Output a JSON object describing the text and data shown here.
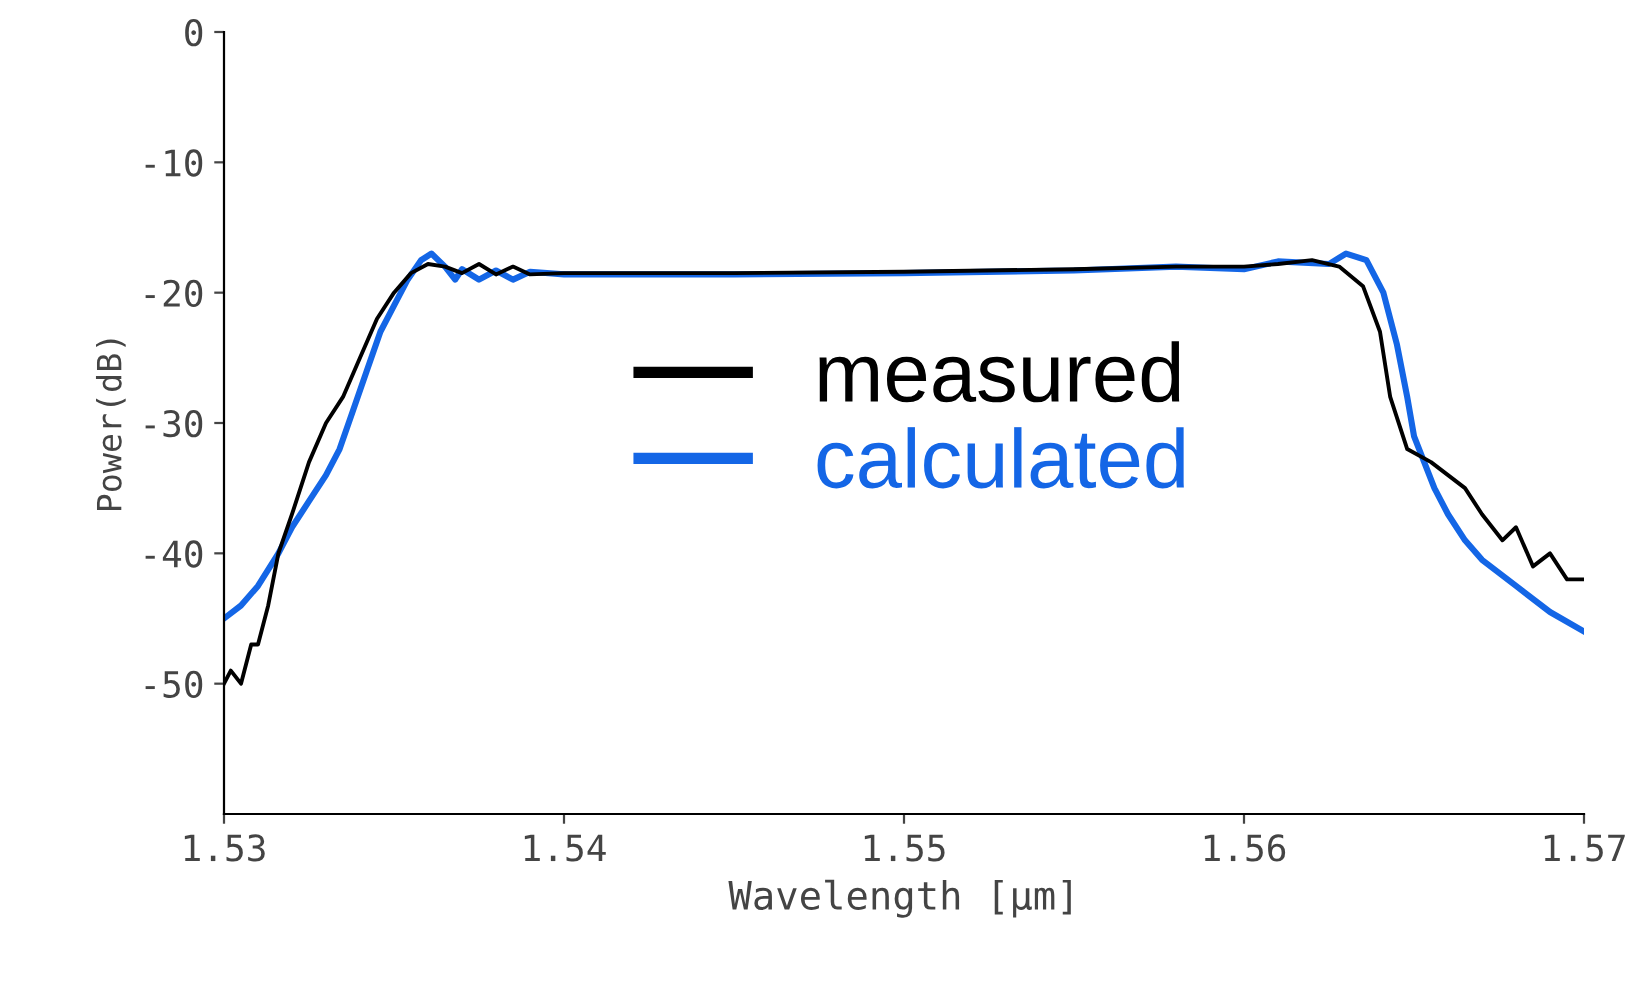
{
  "chart_data": {
    "type": "line",
    "xlabel": "Wavelength [μm]",
    "ylabel": "Power(dB)",
    "xlim": [
      1.53,
      1.57
    ],
    "xticks": [
      1.53,
      1.54,
      1.55,
      1.56,
      1.57
    ],
    "ylim": [
      -60,
      0
    ],
    "yticks": [
      0,
      -10,
      -20,
      -30,
      -40,
      -50
    ],
    "grid": false,
    "legend": "center left",
    "line_style": "solid",
    "marker": "none",
    "series": [
      {
        "name": "measured",
        "color": "#000000",
        "x": [
          1.53,
          1.5302,
          1.5305,
          1.5308,
          1.531,
          1.5313,
          1.5316,
          1.532,
          1.5325,
          1.533,
          1.5335,
          1.534,
          1.5345,
          1.535,
          1.5355,
          1.536,
          1.5365,
          1.537,
          1.5375,
          1.538,
          1.5385,
          1.539,
          1.54,
          1.545,
          1.55,
          1.555,
          1.558,
          1.56,
          1.561,
          1.562,
          1.5628,
          1.5635,
          1.564,
          1.5643,
          1.5648,
          1.5655,
          1.566,
          1.5665,
          1.567,
          1.5676,
          1.568,
          1.5685,
          1.569,
          1.5695,
          1.57
        ],
        "values": [
          -50,
          -49,
          -50,
          -47,
          -47,
          -44,
          -40,
          -37,
          -33,
          -30,
          -28,
          -25,
          -22,
          -20,
          -18.5,
          -17.8,
          -18,
          -18.5,
          -17.8,
          -18.6,
          -18,
          -18.6,
          -18.5,
          -18.5,
          -18.4,
          -18.2,
          -18,
          -18,
          -17.8,
          -17.5,
          -18,
          -19.5,
          -23,
          -28,
          -32,
          -33,
          -34,
          -35,
          -37,
          -39,
          -38,
          -41,
          -40,
          -42,
          -42
        ]
      },
      {
        "name": "calculated",
        "color": "#1466e6",
        "x": [
          1.53,
          1.5305,
          1.531,
          1.5316,
          1.532,
          1.5325,
          1.533,
          1.5334,
          1.5338,
          1.5342,
          1.5346,
          1.535,
          1.5354,
          1.5358,
          1.5361,
          1.5365,
          1.5368,
          1.537,
          1.5375,
          1.538,
          1.5385,
          1.539,
          1.54,
          1.545,
          1.55,
          1.555,
          1.558,
          1.56,
          1.561,
          1.5625,
          1.563,
          1.5636,
          1.5641,
          1.5645,
          1.5648,
          1.565,
          1.5653,
          1.5656,
          1.566,
          1.5665,
          1.567,
          1.568,
          1.569,
          1.57
        ],
        "values": [
          -45,
          -44,
          -42.5,
          -40,
          -38,
          -36,
          -34,
          -32,
          -29,
          -26,
          -23,
          -21,
          -19,
          -17.5,
          -17,
          -18,
          -19,
          -18.2,
          -19,
          -18.3,
          -19,
          -18.4,
          -18.6,
          -18.6,
          -18.5,
          -18.3,
          -18,
          -18.2,
          -17.6,
          -17.8,
          -17,
          -17.5,
          -20,
          -24,
          -28,
          -31,
          -33,
          -35,
          -37,
          -39,
          -40.5,
          -42.5,
          -44.5,
          -46
        ]
      }
    ]
  }
}
